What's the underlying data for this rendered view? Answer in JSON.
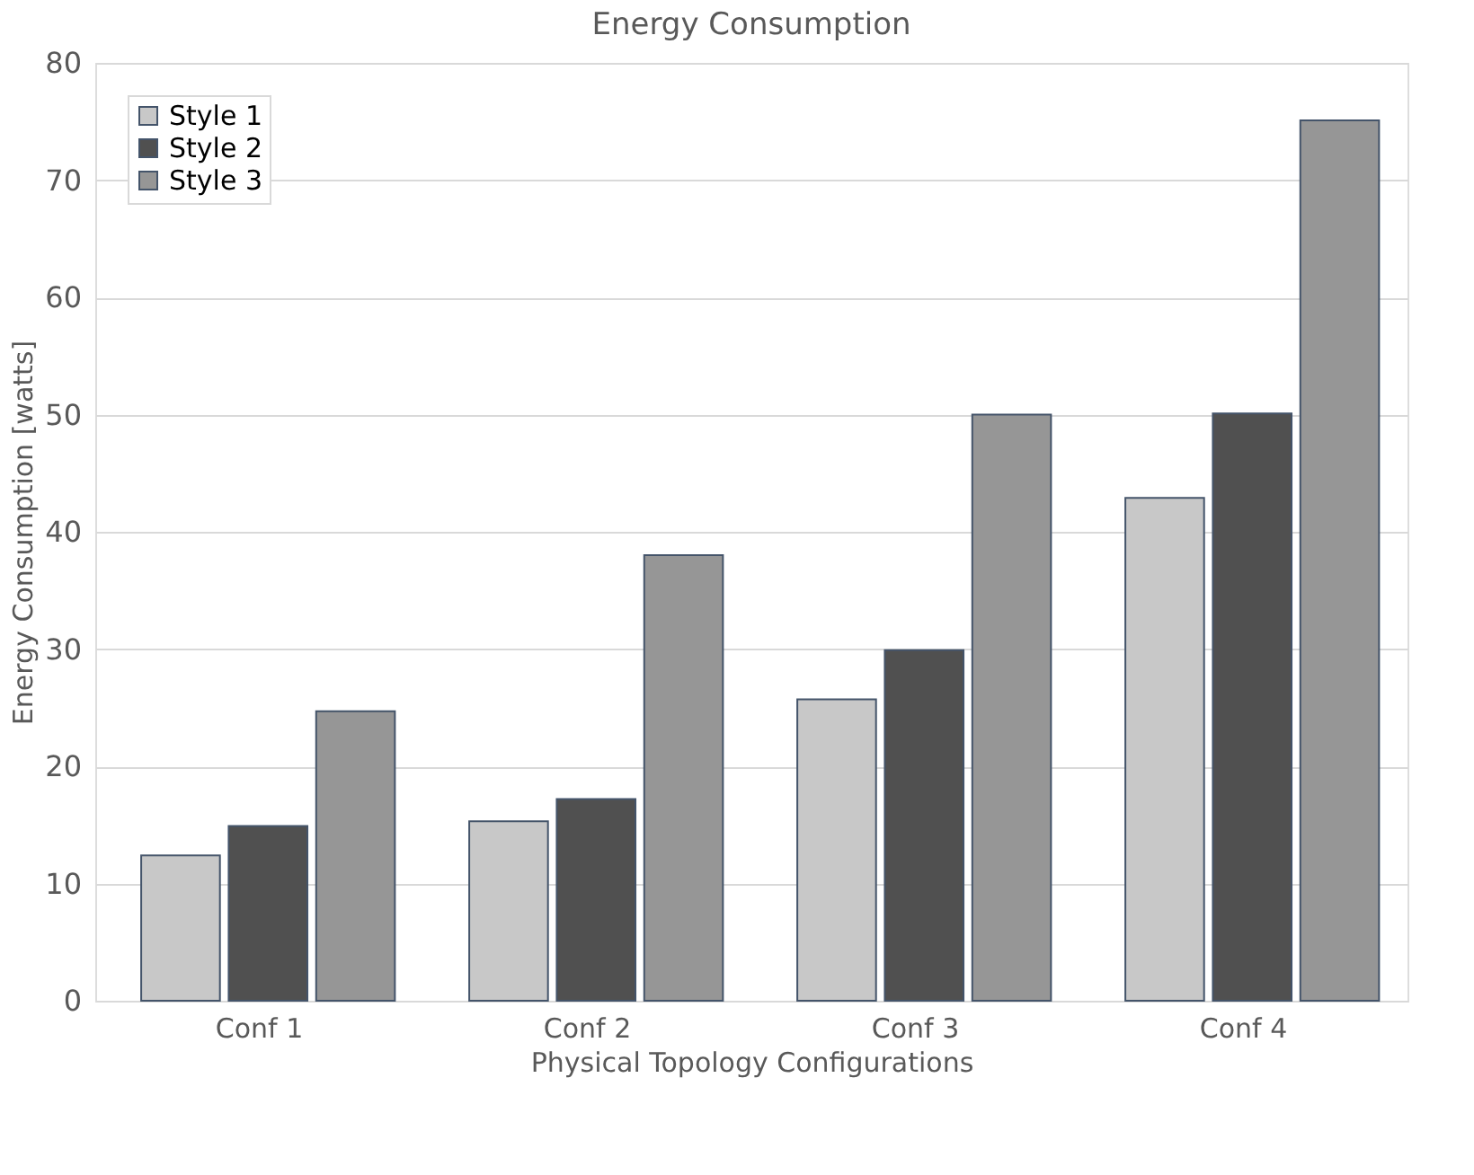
{
  "chart_data": {
    "type": "bar",
    "title": "Energy Consumption",
    "xlabel": "Physical Topology Configurations",
    "ylabel": "Energy Consumption [watts]",
    "categories": [
      "Conf 1",
      "Conf 2",
      "Conf 3",
      "Conf 4"
    ],
    "series": [
      {
        "name": "Style 1",
        "color": "#c8c8c8",
        "values": [
          12.4,
          15.3,
          25.7,
          42.9
        ]
      },
      {
        "name": "Style 2",
        "color": "#505050",
        "values": [
          14.9,
          17.2,
          29.9,
          50.1
        ]
      },
      {
        "name": "Style 3",
        "color": "#969696",
        "values": [
          24.7,
          38.0,
          50.0,
          75.1
        ]
      }
    ],
    "ylim": [
      0,
      80
    ],
    "yticks": [
      0,
      10,
      20,
      30,
      40,
      50,
      60,
      70,
      80
    ],
    "grid": "y",
    "legend": "top left"
  }
}
